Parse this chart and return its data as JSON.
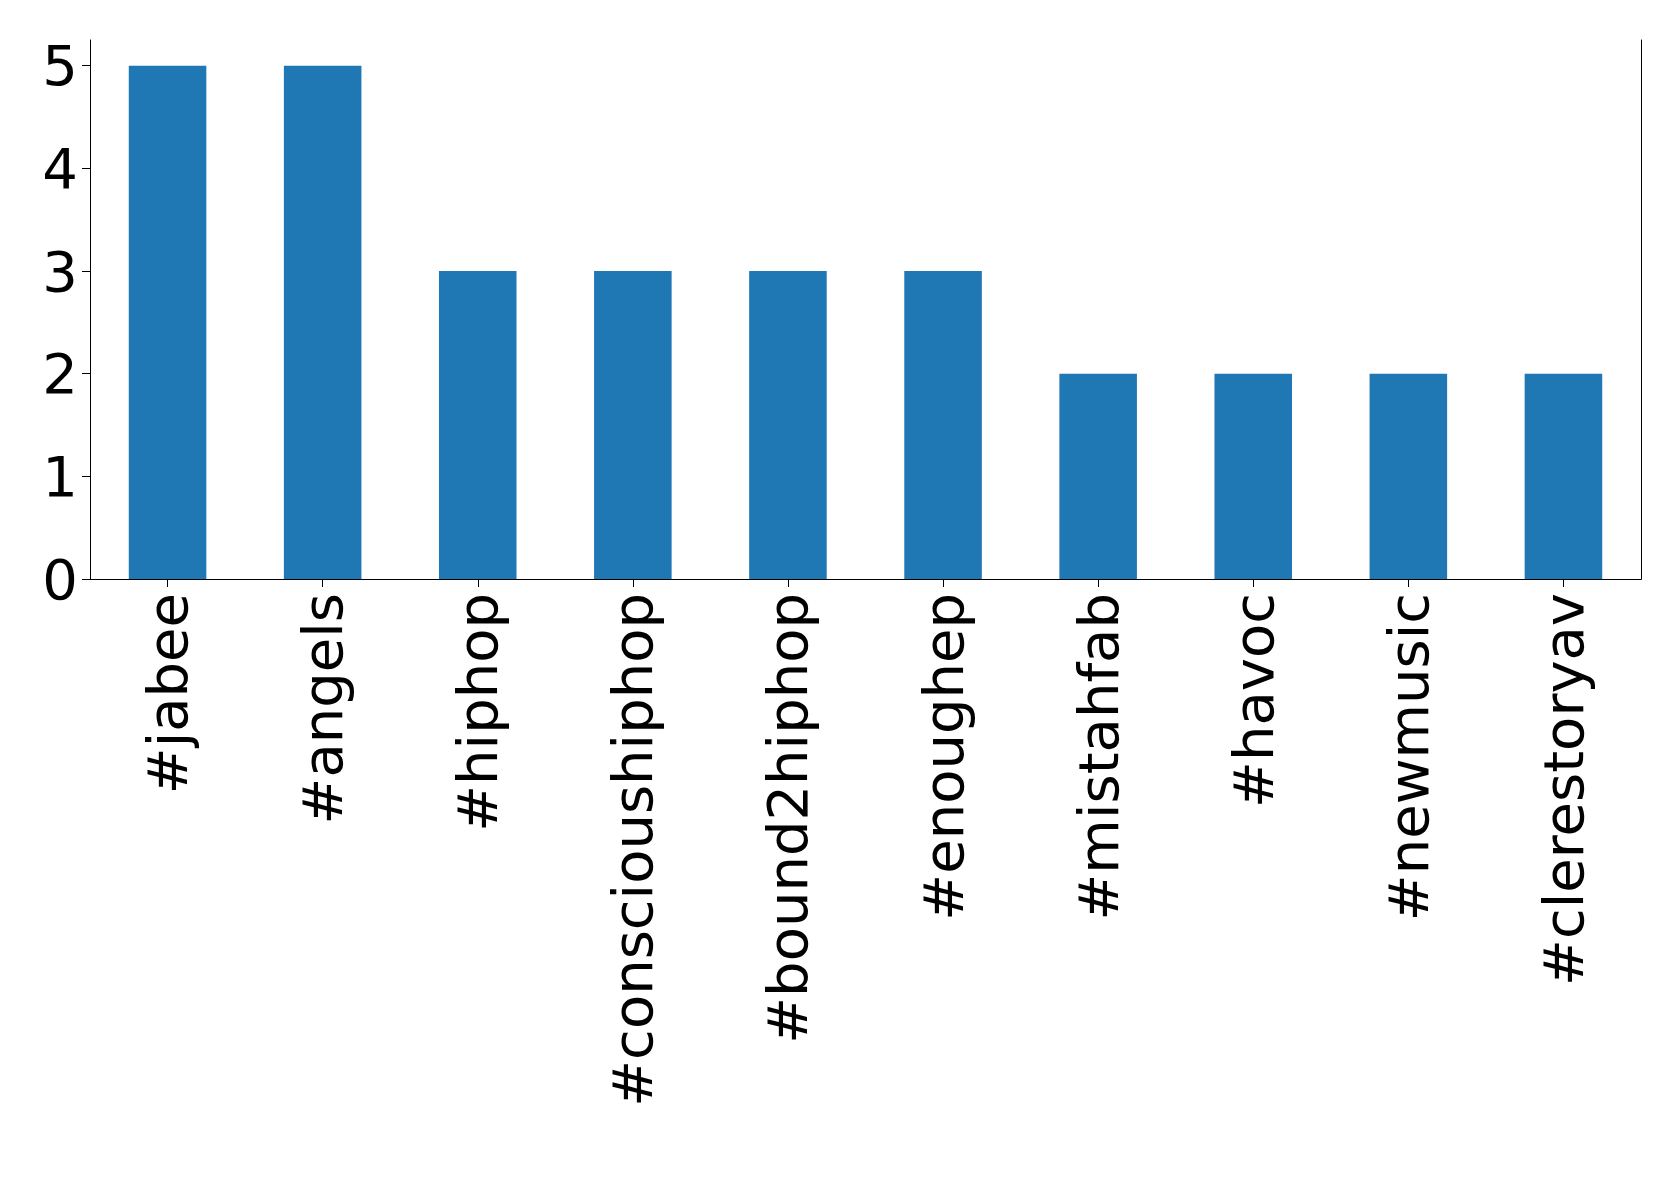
{
  "chart_data": {
    "type": "bar",
    "categories": [
      "#jabee",
      "#angels",
      "#hiphop",
      "#conscioushiphop",
      "#bound2hiphop",
      "#enoughep",
      "#mistahfab",
      "#havoc",
      "#newmusic",
      "#clerestoryav"
    ],
    "values": [
      5,
      5,
      3,
      3,
      3,
      3,
      2,
      2,
      2,
      2
    ],
    "color": "#1f77b4",
    "ylim": [
      0,
      5.25
    ],
    "yticks": [
      0,
      1,
      2,
      3,
      4,
      5
    ],
    "grid": false
  }
}
